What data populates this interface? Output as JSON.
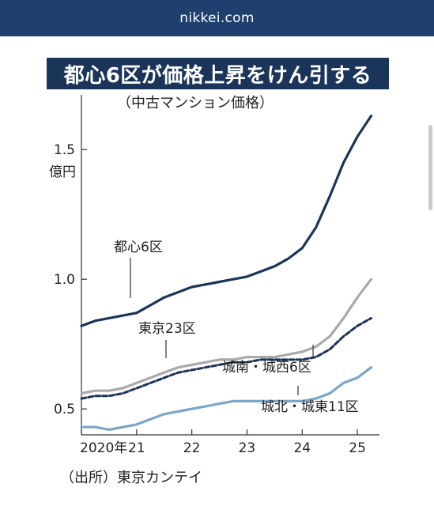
{
  "header": {
    "site": "nikkei.com"
  },
  "chart_data": {
    "type": "line",
    "title": "都心6区が価格上昇をけん引する",
    "subtitle": "（中古マンション価格）",
    "ylabel": "億円",
    "source": "（出所）東京カンテイ",
    "ylim": [
      0.4,
      1.65
    ],
    "xlim": [
      2020,
      2025.4
    ],
    "yticks": [
      {
        "value": 0.5,
        "label": "0.5"
      },
      {
        "value": 1.0,
        "label": "1.0"
      },
      {
        "value": 1.5,
        "label": "1.5"
      }
    ],
    "xticks": [
      {
        "value": 2020,
        "label": "2020年"
      },
      {
        "value": 2021,
        "label": "21"
      },
      {
        "value": 2022,
        "label": "22"
      },
      {
        "value": 2023,
        "label": "23"
      },
      {
        "value": 2024,
        "label": "24"
      },
      {
        "value": 2025,
        "label": "25"
      }
    ],
    "series": [
      {
        "name": "都心6区",
        "color": "#1b3459",
        "style": "solid",
        "x": [
          2020.0,
          2020.25,
          2020.5,
          2020.75,
          2021.0,
          2021.25,
          2021.5,
          2021.75,
          2022.0,
          2022.25,
          2022.5,
          2022.75,
          2023.0,
          2023.25,
          2023.5,
          2023.75,
          2024.0,
          2024.25,
          2024.5,
          2024.75,
          2025.0,
          2025.25
        ],
        "values": [
          0.82,
          0.84,
          0.85,
          0.86,
          0.87,
          0.9,
          0.93,
          0.95,
          0.97,
          0.98,
          0.99,
          1.0,
          1.01,
          1.03,
          1.05,
          1.08,
          1.12,
          1.2,
          1.32,
          1.45,
          1.55,
          1.63
        ]
      },
      {
        "name": "東京23区",
        "color": "#a9a9a9",
        "style": "solid",
        "x": [
          2020.0,
          2020.25,
          2020.5,
          2020.75,
          2021.0,
          2021.25,
          2021.5,
          2021.75,
          2022.0,
          2022.25,
          2022.5,
          2022.75,
          2023.0,
          2023.25,
          2023.5,
          2023.75,
          2024.0,
          2024.25,
          2024.5,
          2024.75,
          2025.0,
          2025.25
        ],
        "values": [
          0.56,
          0.57,
          0.57,
          0.58,
          0.6,
          0.62,
          0.64,
          0.66,
          0.67,
          0.68,
          0.69,
          0.69,
          0.7,
          0.7,
          0.7,
          0.71,
          0.72,
          0.74,
          0.78,
          0.85,
          0.93,
          1.0
        ]
      },
      {
        "name": "城南・城西6区",
        "color": "#1b3459",
        "style": "dashed",
        "x": [
          2020.0,
          2020.25,
          2020.5,
          2020.75,
          2021.0,
          2021.25,
          2021.5,
          2021.75,
          2022.0,
          2022.25,
          2022.5,
          2022.75,
          2023.0,
          2023.25,
          2023.5,
          2023.75,
          2024.0,
          2024.25,
          2024.5,
          2024.75,
          2025.0,
          2025.25
        ],
        "values": [
          0.54,
          0.55,
          0.55,
          0.56,
          0.58,
          0.6,
          0.62,
          0.64,
          0.65,
          0.66,
          0.67,
          0.68,
          0.68,
          0.69,
          0.69,
          0.69,
          0.69,
          0.7,
          0.73,
          0.78,
          0.82,
          0.85
        ]
      },
      {
        "name": "城北・城東11区",
        "color": "#7aa6c8",
        "style": "solid",
        "x": [
          2020.0,
          2020.25,
          2020.5,
          2020.75,
          2021.0,
          2021.25,
          2021.5,
          2021.75,
          2022.0,
          2022.25,
          2022.5,
          2022.75,
          2023.0,
          2023.25,
          2023.5,
          2023.75,
          2024.0,
          2024.25,
          2024.5,
          2024.75,
          2025.0,
          2025.25
        ],
        "values": [
          0.43,
          0.43,
          0.42,
          0.43,
          0.44,
          0.46,
          0.48,
          0.49,
          0.5,
          0.51,
          0.52,
          0.53,
          0.53,
          0.53,
          0.53,
          0.53,
          0.53,
          0.54,
          0.56,
          0.6,
          0.62,
          0.66
        ]
      }
    ],
    "annotations": [
      {
        "series": 0,
        "text": "都心6区"
      },
      {
        "series": 1,
        "text": "東京23区"
      },
      {
        "series": 2,
        "text": "城南・城西6区"
      },
      {
        "series": 3,
        "text": "城北・城東11区"
      }
    ]
  }
}
